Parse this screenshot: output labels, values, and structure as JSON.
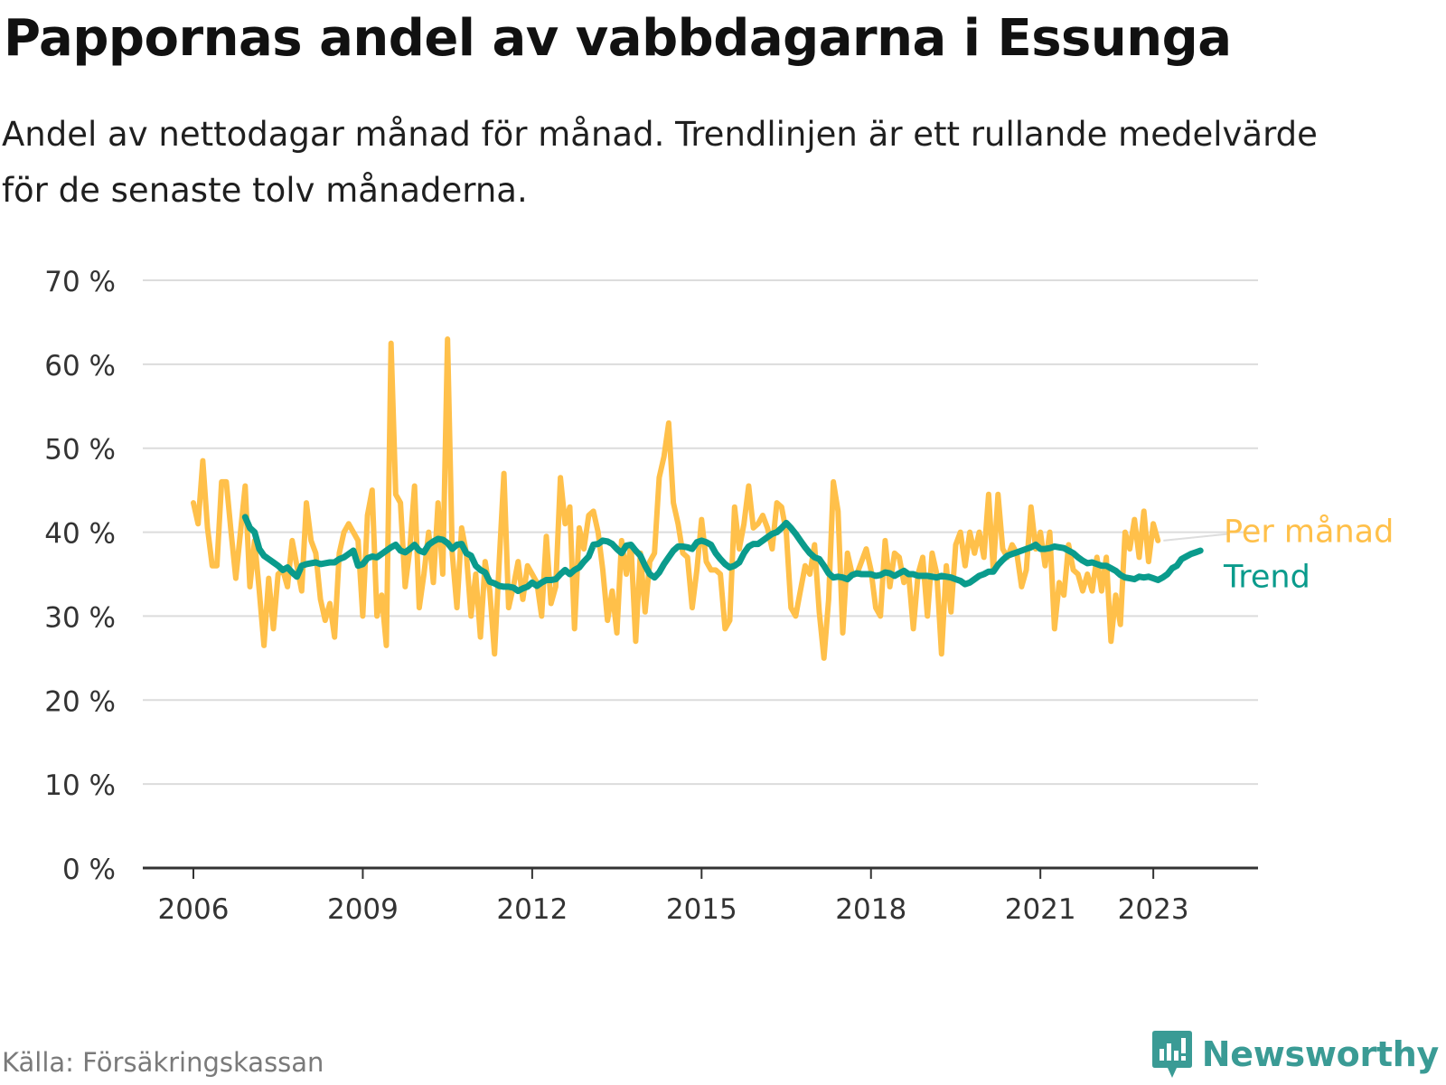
{
  "title": "Pappornas andel av vabbdagarna i Essunga",
  "subtitle": "Andel av nettodagar månad för månad. Trendlinjen är ett rullande medelvärde för de senaste tolv månaderna.",
  "source": "Källa: Försäkringskassan",
  "brand": {
    "name": "Newsworthy",
    "icon": "newsworthy-logo-icon"
  },
  "colors": {
    "monthly": "#ffc04a",
    "trend": "#0a9b8c",
    "grid": "#dcdcdc",
    "axis": "#333333",
    "brand": "#3a9b95"
  },
  "chart_data": {
    "type": "line",
    "x_ticks": [
      "2006",
      "2009",
      "2012",
      "2015",
      "2018",
      "2021",
      "2023"
    ],
    "x_tick_values": [
      2006,
      2009,
      2012,
      2015,
      2018,
      2021,
      2023
    ],
    "y_ticks": [
      "0 %",
      "10 %",
      "20 %",
      "30 %",
      "40 %",
      "50 %",
      "60 %",
      "70 %"
    ],
    "y_tick_values": [
      0,
      10,
      20,
      30,
      40,
      50,
      60,
      70
    ],
    "ylim": [
      0,
      70
    ],
    "xlim": [
      2005.9,
      2024.9
    ],
    "grid": "horizontal",
    "series": [
      {
        "name": "Per månad",
        "color": "#ffc04a",
        "start": "2006-01",
        "values": [
          43.5,
          41.0,
          48.5,
          40.5,
          36.0,
          36.0,
          46.0,
          46.0,
          40.0,
          34.5,
          40.0,
          45.5,
          33.5,
          39.0,
          33.0,
          26.5,
          34.5,
          28.5,
          35.0,
          35.5,
          33.5,
          39.0,
          36.0,
          33.0,
          43.5,
          39.0,
          37.5,
          32.0,
          29.5,
          31.5,
          27.5,
          37.5,
          40.0,
          41.0,
          40.0,
          39.0,
          30.0,
          42.0,
          45.0,
          30.0,
          32.5,
          26.5,
          62.5,
          44.5,
          43.5,
          33.5,
          38.0,
          45.5,
          31.0,
          35.0,
          40.0,
          34.0,
          43.5,
          35.0,
          63.0,
          37.5,
          31.0,
          40.5,
          37.5,
          30.0,
          35.0,
          27.5,
          36.5,
          33.0,
          25.5,
          36.5,
          47.0,
          31.0,
          33.5,
          36.5,
          32.0,
          36.0,
          35.0,
          34.0,
          30.0,
          39.5,
          31.5,
          33.5,
          46.5,
          41.0,
          43.0,
          28.5,
          40.5,
          38.0,
          42.0,
          42.5,
          40.0,
          35.5,
          29.5,
          33.0,
          28.0,
          39.0,
          35.0,
          38.5,
          27.0,
          37.5,
          30.5,
          36.5,
          37.5,
          46.5,
          49.0,
          53.0,
          43.5,
          41.0,
          37.5,
          37.0,
          31.0,
          35.5,
          41.5,
          36.5,
          35.5,
          35.5,
          35.0,
          28.5,
          29.5,
          43.0,
          38.0,
          41.0,
          45.5,
          40.5,
          41.0,
          42.0,
          40.5,
          38.0,
          43.5,
          43.0,
          40.0,
          31.0,
          30.0,
          33.0,
          36.0,
          35.0,
          38.5,
          30.5,
          25.0,
          32.0,
          46.0,
          42.5,
          28.0,
          37.5,
          35.0,
          35.0,
          36.5,
          38.0,
          35.5,
          31.0,
          30.0,
          39.0,
          33.5,
          37.5,
          37.0,
          34.0,
          35.0,
          28.5,
          35.0,
          37.0,
          30.0,
          37.5,
          35.0,
          25.5,
          36.0,
          30.5,
          38.5,
          40.0,
          36.0,
          40.0,
          37.5,
          40.0,
          37.0,
          44.5,
          35.5,
          44.5,
          38.0,
          37.0,
          38.5,
          37.5,
          33.5,
          35.5,
          43.0,
          38.0,
          40.0,
          36.0,
          40.0,
          28.5,
          34.0,
          32.5,
          38.5,
          35.5,
          35.0,
          33.0,
          35.0,
          33.0,
          37.0,
          33.0,
          37.0,
          27.0,
          32.5,
          29.0,
          40.0,
          38.0,
          41.5,
          37.0,
          42.5,
          36.5,
          41.0,
          39.0
        ]
      },
      {
        "name": "Trend",
        "color": "#0a9b8c",
        "start": "2006-12",
        "values": [
          41.8,
          40.5,
          40.0,
          38.0,
          37.2,
          36.8,
          36.4,
          36.0,
          35.5,
          35.8,
          35.2,
          34.7,
          36.0,
          36.2,
          36.3,
          36.4,
          36.2,
          36.3,
          36.4,
          36.4,
          36.8,
          37.0,
          37.4,
          37.8,
          36.0,
          36.2,
          36.9,
          37.1,
          37.0,
          37.4,
          37.8,
          38.2,
          38.5,
          37.8,
          37.6,
          38.0,
          38.5,
          37.8,
          37.6,
          38.5,
          38.9,
          39.2,
          39.1,
          38.7,
          38.0,
          38.5,
          38.6,
          37.5,
          37.2,
          36.0,
          35.5,
          35.2,
          34.1,
          33.9,
          33.6,
          33.5,
          33.5,
          33.4,
          33.0,
          33.3,
          33.5,
          34.0,
          33.6,
          34.0,
          34.3,
          34.3,
          34.4,
          35.0,
          35.5,
          35.0,
          35.5,
          35.8,
          36.5,
          37.1,
          38.5,
          38.6,
          39.0,
          38.9,
          38.6,
          38.0,
          37.5,
          38.4,
          38.5,
          37.8,
          37.2,
          36.0,
          35.0,
          34.6,
          35.2,
          36.2,
          37.0,
          37.8,
          38.3,
          38.3,
          38.2,
          38.0,
          38.8,
          39.0,
          38.8,
          38.5,
          37.5,
          36.8,
          36.2,
          35.8,
          36.0,
          36.4,
          37.5,
          38.3,
          38.6,
          38.6,
          39.0,
          39.4,
          39.8,
          40.0,
          40.5,
          41.1,
          40.5,
          39.8,
          39.0,
          38.2,
          37.5,
          37.0,
          36.8,
          36.0,
          35.1,
          34.6,
          34.7,
          34.6,
          34.4,
          34.9,
          35.1,
          35.0,
          35.0,
          35.0,
          34.8,
          34.9,
          35.2,
          35.1,
          34.8,
          35.1,
          35.4,
          35.0,
          35.0,
          34.8,
          34.8,
          34.8,
          34.7,
          34.6,
          34.8,
          34.7,
          34.6,
          34.4,
          34.2,
          33.8,
          34.0,
          34.4,
          34.8,
          35.0,
          35.3,
          35.3,
          36.1,
          36.7,
          37.2,
          37.4,
          37.6,
          37.8,
          38.0,
          38.2,
          38.5,
          38.0,
          38.0,
          38.1,
          38.3,
          38.2,
          38.1,
          37.8,
          37.5,
          37.0,
          36.6,
          36.3,
          36.4,
          36.2,
          36.0,
          36.0,
          35.7,
          35.4,
          34.9,
          34.6,
          34.5,
          34.4,
          34.7,
          34.6,
          34.7,
          34.5,
          34.3,
          34.6,
          35.0,
          35.7,
          36.0,
          36.8,
          37.1,
          37.4,
          37.6,
          37.8
        ]
      }
    ]
  }
}
